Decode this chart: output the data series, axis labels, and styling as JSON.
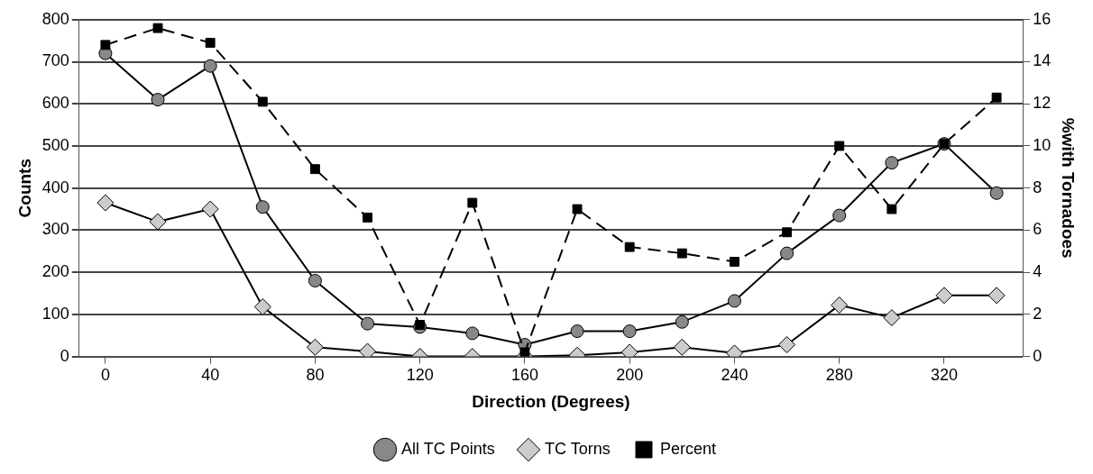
{
  "chart_data": {
    "type": "line",
    "xlabel": "Direction (Degrees)",
    "ylabel": "Counts",
    "y2label": "%with Tornadoes",
    "x": [
      0,
      20,
      40,
      60,
      80,
      100,
      120,
      140,
      160,
      180,
      200,
      220,
      240,
      260,
      280,
      300,
      320,
      340
    ],
    "series": [
      {
        "name": "All TC Points",
        "color": "#888888",
        "marker": "circle",
        "line_style": "solid",
        "values": [
          720,
          610,
          690,
          355,
          180,
          78,
          70,
          55,
          28,
          60,
          60,
          82,
          132,
          245,
          335,
          460,
          505,
          388
        ]
      },
      {
        "name": "TC Torns",
        "color": "#cccccc",
        "marker": "diamond",
        "line_style": "solid",
        "values": [
          365,
          320,
          350,
          118,
          22,
          12,
          0,
          0,
          0,
          3,
          10,
          22,
          8,
          28,
          122,
          92,
          145,
          145
        ]
      },
      {
        "name": "Percent",
        "color": "#000000",
        "marker": "square",
        "line_style": "dashed",
        "axis": "y2",
        "values": [
          14.8,
          15.6,
          14.9,
          12.1,
          8.9,
          6.6,
          1.5,
          7.3,
          0.2,
          7.0,
          5.2,
          4.9,
          4.5,
          5.9,
          10.0,
          7.0,
          10.1,
          12.3
        ]
      }
    ],
    "xlim": [
      -10,
      350
    ],
    "xticks": [
      0,
      40,
      80,
      120,
      160,
      200,
      240,
      280,
      320
    ],
    "ylim": [
      0,
      800
    ],
    "yticks": [
      0,
      100,
      200,
      300,
      400,
      500,
      600,
      700,
      800
    ],
    "y2lim": [
      0,
      16
    ],
    "y2ticks": [
      0,
      2,
      4,
      6,
      8,
      10,
      12,
      14,
      16
    ],
    "grid": "y",
    "legend": "bottom"
  }
}
